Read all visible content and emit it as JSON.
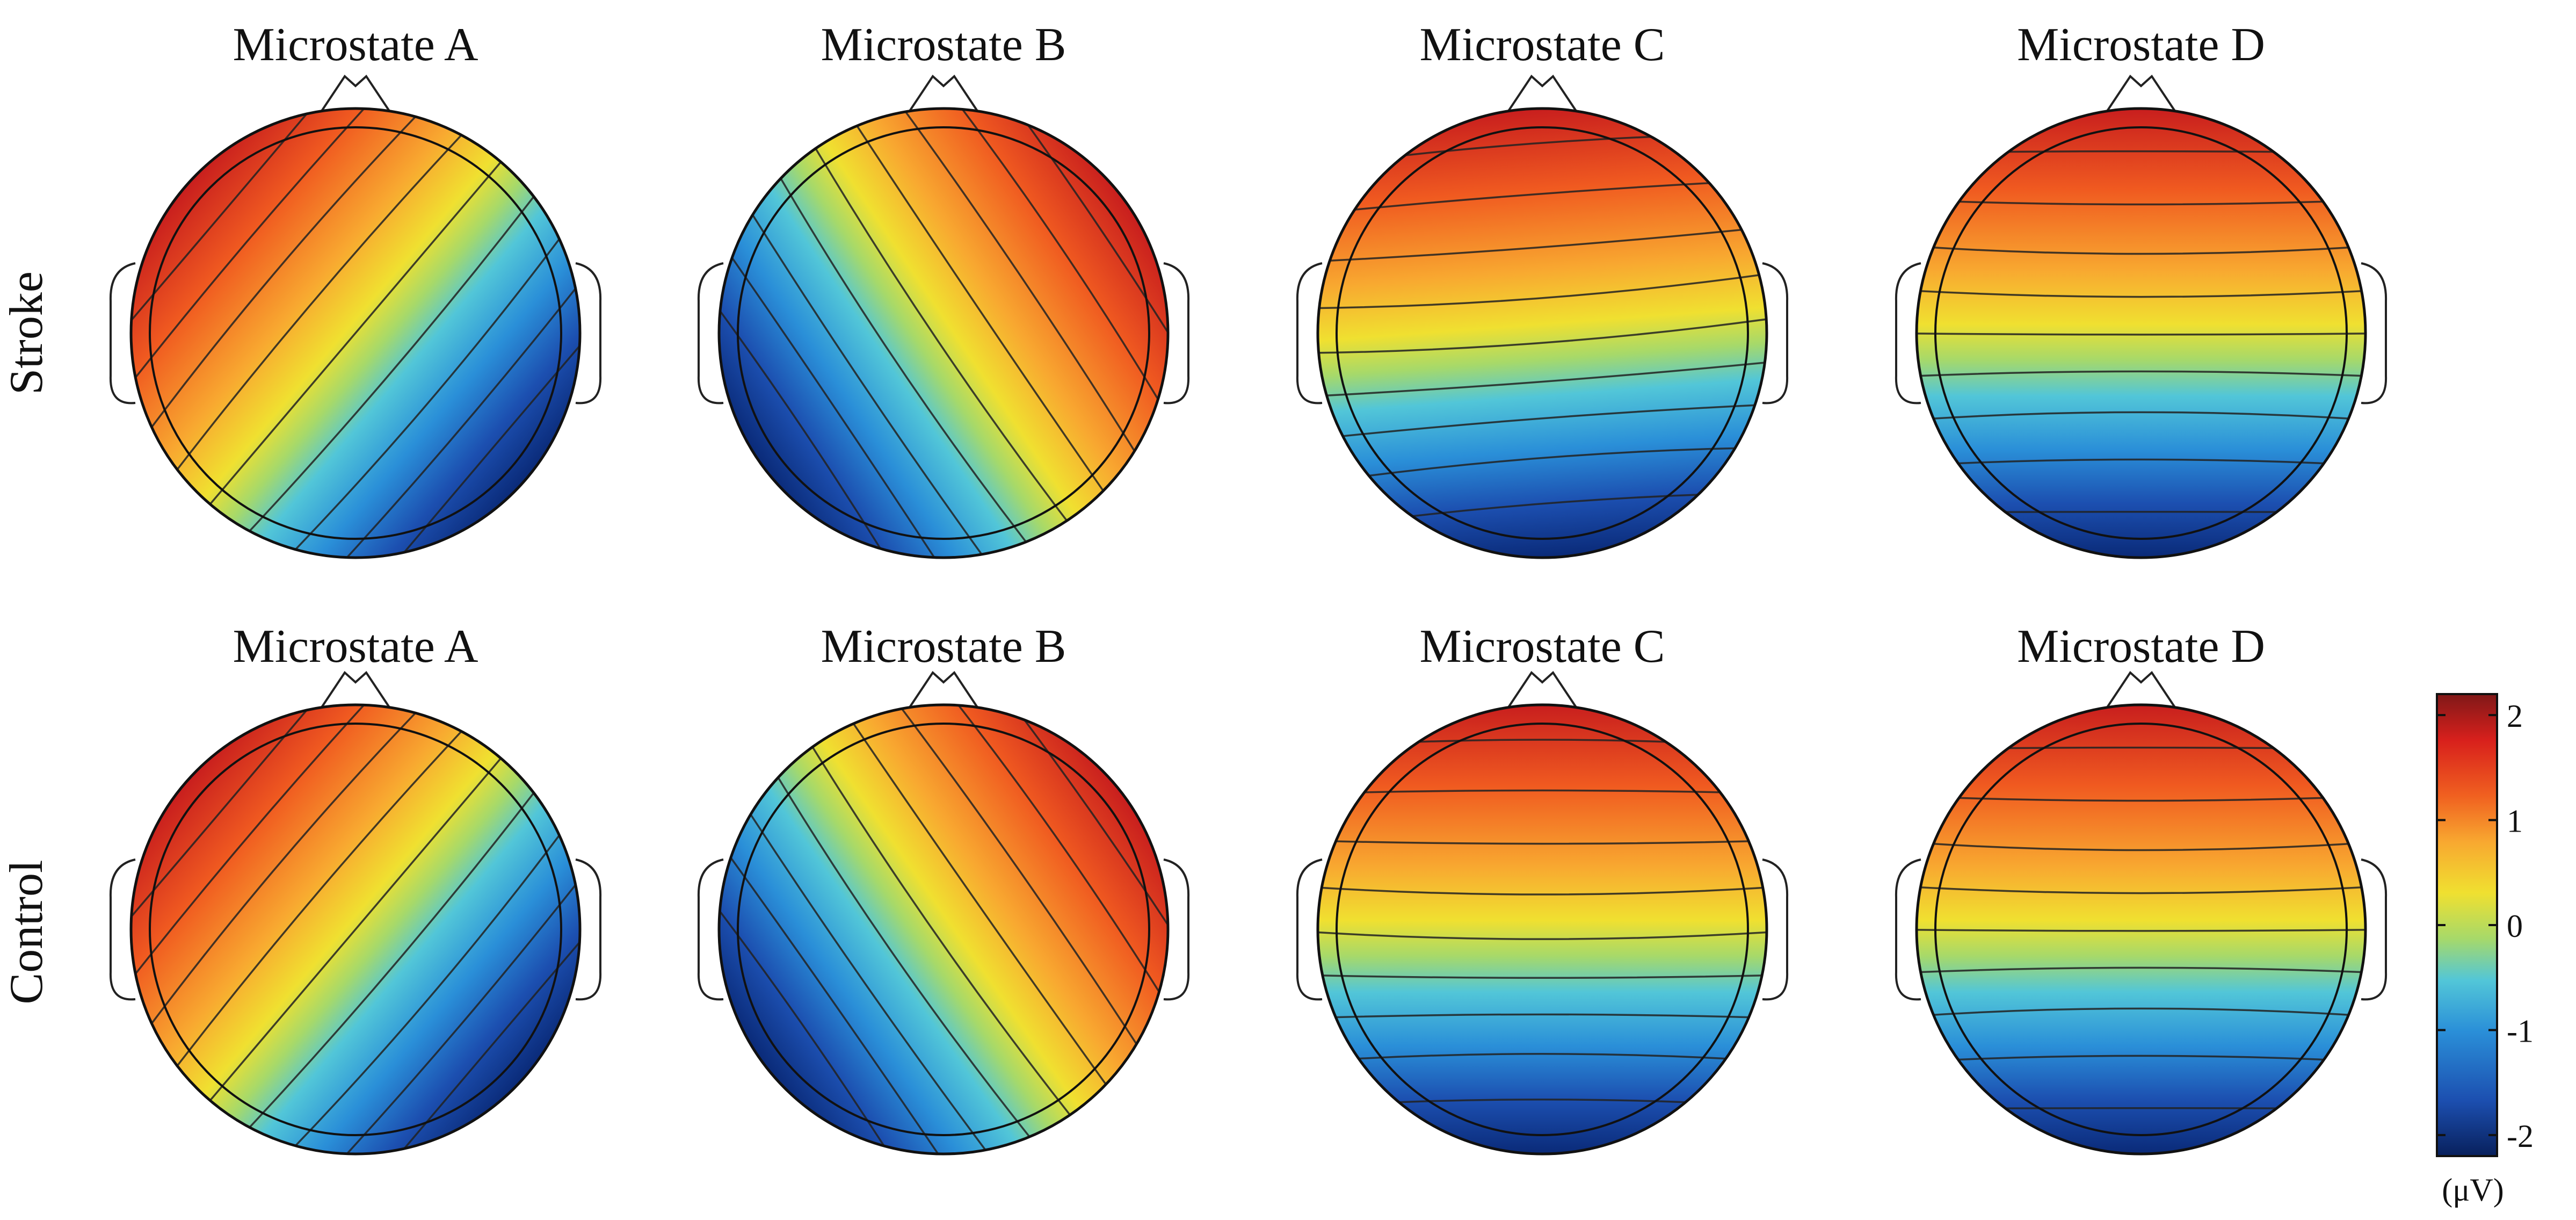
{
  "figure": {
    "rows": [
      {
        "label": "Stroke",
        "maps": [
          {
            "title": "Microstate A",
            "pos": [
              -1.0,
              -0.85
            ],
            "neg": [
              1.0,
              0.85
            ]
          },
          {
            "title": "Microstate B",
            "pos": [
              1.0,
              -0.65
            ],
            "neg": [
              -1.0,
              0.7
            ]
          },
          {
            "title": "Microstate C",
            "pos": [
              0.0,
              -1.0
            ],
            "neg": [
              0.15,
              1.0
            ]
          },
          {
            "title": "Microstate D",
            "pos": [
              0.0,
              -0.6
            ],
            "neg": [
              0.0,
              1.0
            ]
          }
        ]
      },
      {
        "label": "Control",
        "maps": [
          {
            "title": "Microstate A",
            "pos": [
              -1.0,
              -0.85
            ],
            "neg": [
              1.0,
              0.85
            ]
          },
          {
            "title": "Microstate B",
            "pos": [
              1.0,
              -0.65
            ],
            "neg": [
              -1.0,
              0.75
            ]
          },
          {
            "title": "Microstate C",
            "pos": [
              0.0,
              -1.0
            ],
            "neg": [
              0.0,
              0.85
            ]
          },
          {
            "title": "Microstate D",
            "pos": [
              0.0,
              -0.25
            ],
            "neg": [
              0.0,
              1.0
            ]
          }
        ]
      }
    ]
  },
  "colorbar": {
    "ticks": [
      "2",
      "1",
      "0",
      "-1",
      "-2"
    ],
    "tick_values": [
      2,
      1,
      0,
      -1,
      -2
    ],
    "range": [
      -2.2,
      2.2
    ],
    "unit": "(μV)",
    "colors": [
      "#08205c",
      "#1c4fb0",
      "#2a8fd8",
      "#52c6d8",
      "#a6d96a",
      "#f0e030",
      "#f8a830",
      "#f06020",
      "#d8201c",
      "#801818"
    ]
  }
}
